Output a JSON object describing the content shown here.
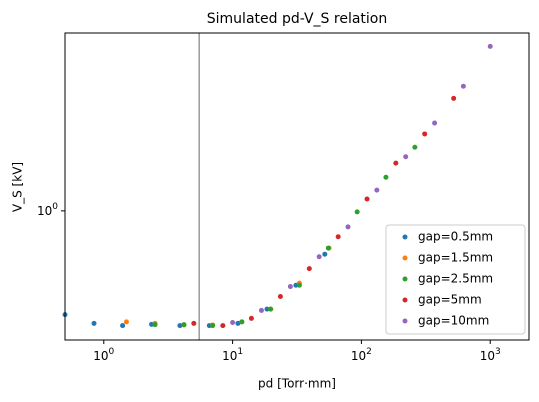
{
  "chart_data": {
    "type": "scatter",
    "title": "Simulated pd-V_S relation",
    "x_label": "pd [Torr·mm]",
    "y_label": "V_S [kV]",
    "log_x": true,
    "log_y": true,
    "xlim": [
      0.5,
      2000
    ],
    "ylim": [
      0.29,
      5.5
    ],
    "xticks": [
      {
        "value": 1,
        "label": "10^0"
      },
      {
        "value": 10,
        "label": "10^1"
      },
      {
        "value": 100,
        "label": "10^2"
      },
      {
        "value": 1000,
        "label": "10^3"
      }
    ],
    "yticks": [
      {
        "value": 1,
        "label": "10^0"
      }
    ],
    "vline": {
      "x": 5.5,
      "color": "#808080"
    },
    "legend": "lower right",
    "series": [
      {
        "name": "gap=0.5mm",
        "color": "#1f77b4",
        "x": [
          0.5,
          0.84,
          1.4,
          2.35,
          3.9,
          6.6,
          11,
          18.5,
          31,
          52
        ],
        "values": [
          0.37,
          0.34,
          0.333,
          0.337,
          0.333,
          0.333,
          0.34,
          0.39,
          0.49,
          0.66
        ]
      },
      {
        "name": "gap=1.5mm",
        "color": "#ff7f0e",
        "x": [
          1.5,
          2.5,
          4.2,
          7.0,
          11.8,
          19.8,
          33,
          56
        ],
        "values": [
          0.345,
          0.34,
          0.335,
          0.335,
          0.345,
          0.39,
          0.5,
          0.7
        ]
      },
      {
        "name": "gap=2.5mm",
        "color": "#2ca02c",
        "x": [
          2.5,
          4.19,
          7.0,
          11.8,
          19.7,
          33,
          55.4,
          92.7,
          155,
          260
        ],
        "values": [
          0.336,
          0.336,
          0.333,
          0.345,
          0.39,
          0.49,
          0.7,
          0.99,
          1.38,
          1.84
        ]
      },
      {
        "name": "gap=5mm",
        "color": "#d62728",
        "x": [
          5,
          8.4,
          14.0,
          23.5,
          39.4,
          66,
          110.6,
          185,
          310,
          520
        ],
        "values": [
          0.34,
          0.333,
          0.357,
          0.44,
          0.575,
          0.78,
          1.12,
          1.58,
          2.09,
          2.94
        ]
      },
      {
        "name": "gap=10mm",
        "color": "#9467bd",
        "x": [
          10,
          16.75,
          28.1,
          47,
          78.7,
          131.8,
          220.8,
          370,
          619,
          1000
        ],
        "values": [
          0.343,
          0.385,
          0.484,
          0.644,
          0.858,
          1.22,
          1.68,
          2.32,
          3.3,
          4.84
        ]
      }
    ]
  }
}
